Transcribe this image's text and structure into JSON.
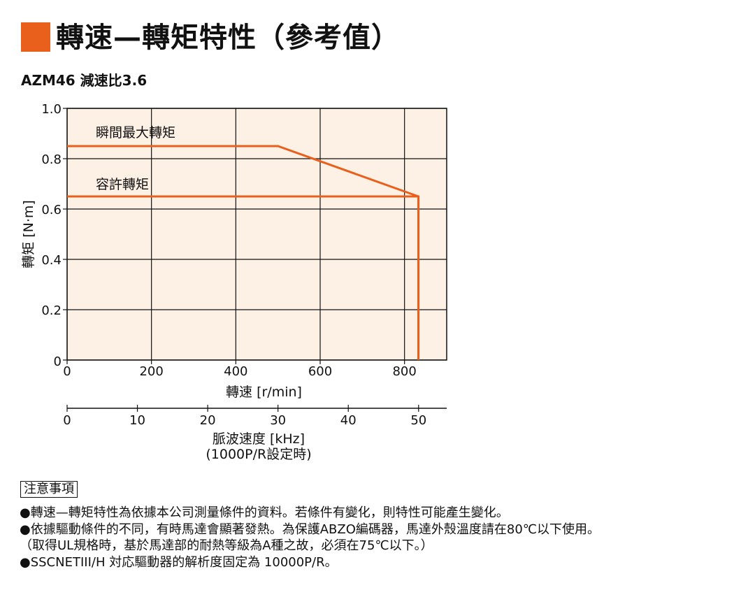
{
  "page": {
    "title": "轉速—轉矩特性（參考值）",
    "accent_color": "#e8601c"
  },
  "chart_data": {
    "type": "line",
    "title": "AZM46 減速比3.6",
    "xlabel": "轉速 [r/min]",
    "ylabel": "轉矩 [N·m]",
    "xlim": [
      0,
      900
    ],
    "ylim": [
      0,
      1.0
    ],
    "x_ticks": [
      "0",
      "200",
      "400",
      "600",
      "800"
    ],
    "y_ticks": [
      "0",
      "0.2",
      "0.4",
      "0.6",
      "0.8",
      "1.0"
    ],
    "grid": true,
    "plot_background": "#fdf0e5",
    "line_color": "#e8601c",
    "series": [
      {
        "name": "瞬間最大轉矩",
        "x": [
          0,
          500,
          833,
          833
        ],
        "y": [
          0.85,
          0.85,
          0.65,
          0
        ]
      },
      {
        "name": "容許轉矩",
        "x": [
          0,
          833,
          833
        ],
        "y": [
          0.65,
          0.65,
          0
        ]
      }
    ],
    "secondary_axis": {
      "label_line1": "脈波速度 [kHz]",
      "label_line2": "(1000P/R設定時)",
      "ticks": [
        "0",
        "10",
        "20",
        "30",
        "40",
        "50"
      ],
      "range": [
        0,
        54
      ]
    }
  },
  "notes": {
    "heading": "注意事項",
    "items": [
      "●轉速—轉矩特性為依據本公司測量條件的資料。若條件有變化，則特性可能產生變化。",
      "●依據驅動條件的不同，有時馬達會顯著發熱。為保護ABZO編碼器，馬達外殼溫度請在80℃以下使用。",
      "（取得UL規格時，基於馬達部的耐熱等級為A種之故，必須在75℃以下。）",
      "●SSCNETIII/H 対応驅動器的解析度固定為 10000P/R。"
    ]
  }
}
